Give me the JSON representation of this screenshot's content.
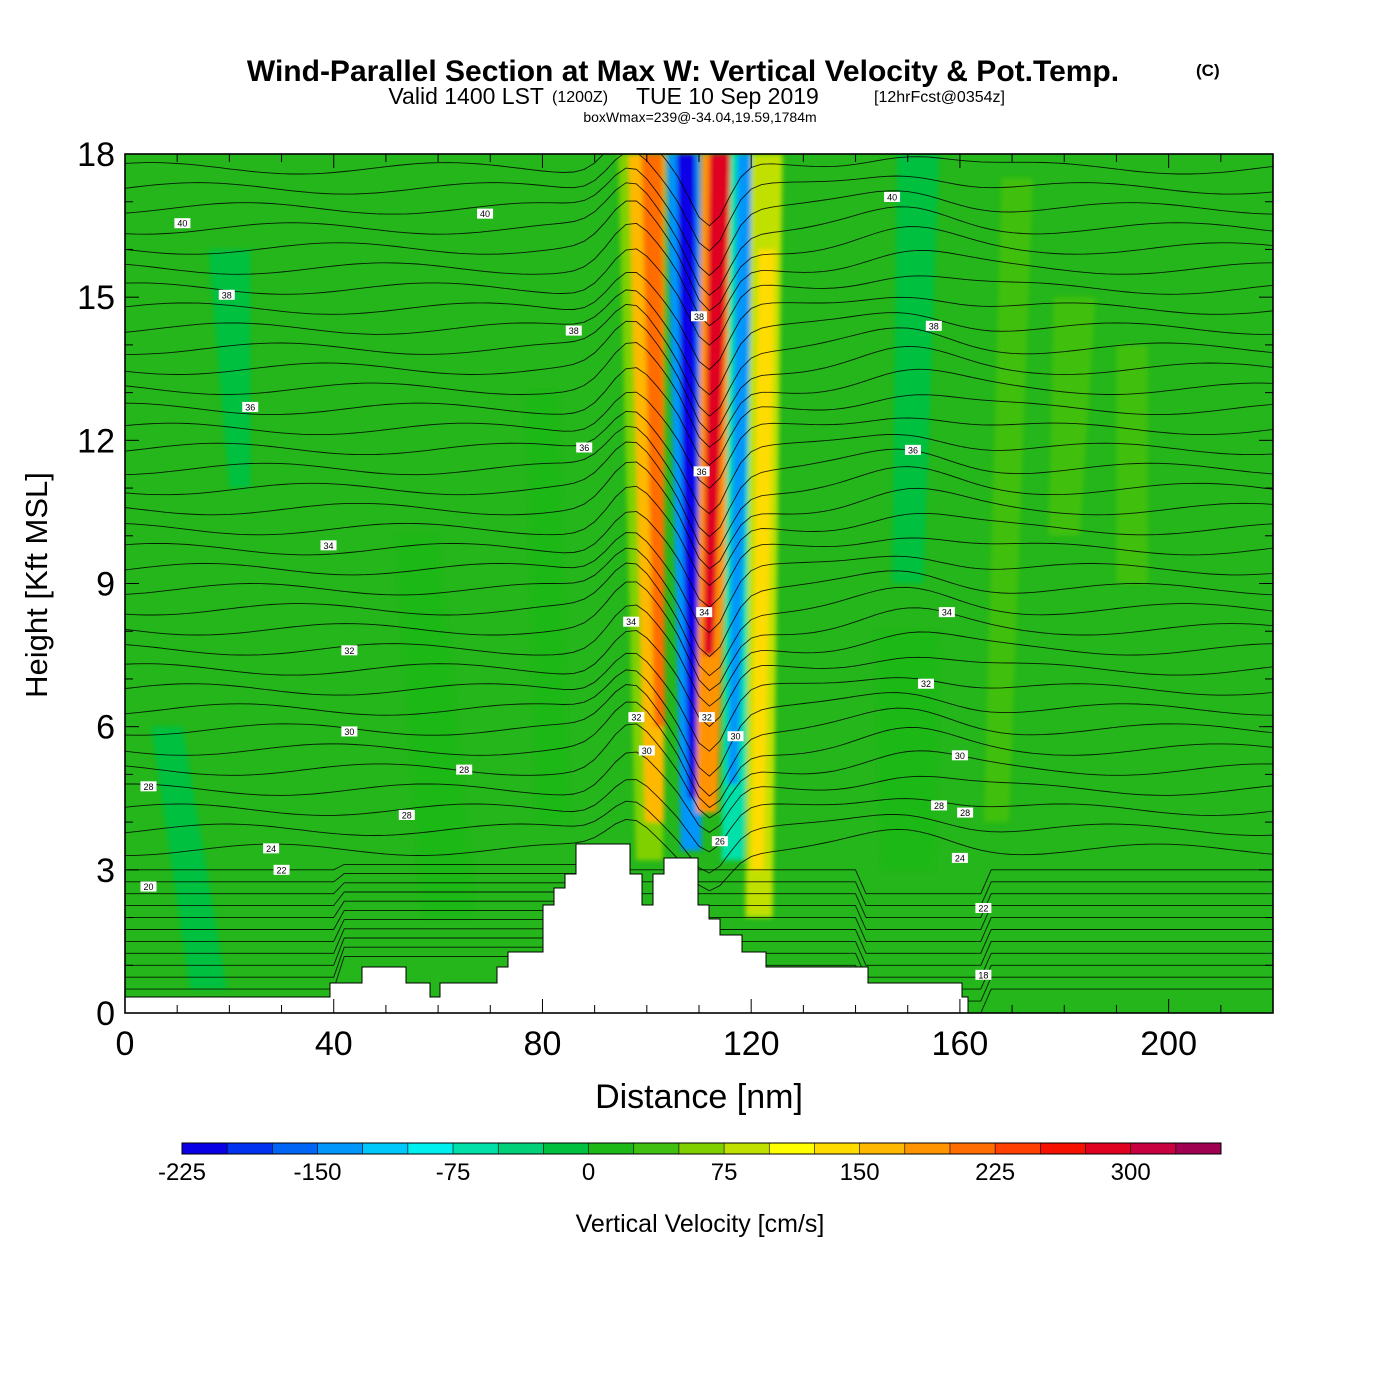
{
  "chart_data": {
    "type": "heatmap",
    "title": "Wind-Parallel Section at Max W: Vertical Velocity & Pot.Temp.",
    "title_mark": "(C)",
    "subtitle": {
      "valid": "Valid 1400 LST",
      "utc": "(1200Z)",
      "date": "TUE 10 Sep 2019",
      "forecast": "[12hrFcst@0354z]"
    },
    "info_line": "boxWmax=239@-34.04,19.59,1784m",
    "xlabel": "Distance [nm]",
    "ylabel": "Height [Kft MSL]",
    "xlim": [
      0,
      220
    ],
    "ylim": [
      0,
      18
    ],
    "x_ticks": [
      0,
      40,
      80,
      120,
      160,
      200
    ],
    "x_tick_labels": [
      "0",
      "40",
      "80",
      "120",
      "160",
      "200"
    ],
    "y_ticks": [
      0,
      3,
      6,
      9,
      12,
      15,
      18
    ],
    "y_tick_labels": [
      "0",
      "3",
      "6",
      "9",
      "12",
      "15",
      "18"
    ],
    "colorbar": {
      "label": "Vertical Velocity [cm/s]",
      "min": -225,
      "max": 350,
      "step": 25,
      "tick_values": [
        -225,
        -150,
        -75,
        0,
        75,
        150,
        225,
        300
      ],
      "tick_labels": [
        "-225",
        "-150",
        "-75",
        "0",
        "75",
        "150",
        "225",
        "300"
      ],
      "colors": [
        "#0a00e6",
        "#0032f0",
        "#0064f5",
        "#0096fa",
        "#00c8fa",
        "#00f0f0",
        "#00e0a8",
        "#00d078",
        "#00c040",
        "#1cb818",
        "#40c010",
        "#80d000",
        "#c0e000",
        "#ffff00",
        "#ffdc00",
        "#ffb800",
        "#ff9400",
        "#ff6c00",
        "#ff4000",
        "#f51000",
        "#e00020",
        "#c80040",
        "#a00050"
      ]
    },
    "contour_labels": [
      {
        "text": "40",
        "x": 11,
        "y": 16.55
      },
      {
        "text": "40",
        "x": 69,
        "y": 16.75
      },
      {
        "text": "40",
        "x": 147,
        "y": 17.1
      },
      {
        "text": "38",
        "x": 19.5,
        "y": 15.05
      },
      {
        "text": "38",
        "x": 86,
        "y": 14.3
      },
      {
        "text": "38",
        "x": 110,
        "y": 14.6
      },
      {
        "text": "38",
        "x": 155,
        "y": 14.4
      },
      {
        "text": "36",
        "x": 24,
        "y": 12.7
      },
      {
        "text": "36",
        "x": 88,
        "y": 11.85
      },
      {
        "text": "36",
        "x": 110.5,
        "y": 11.35
      },
      {
        "text": "36",
        "x": 151,
        "y": 11.8
      },
      {
        "text": "34",
        "x": 39,
        "y": 9.8
      },
      {
        "text": "34",
        "x": 97,
        "y": 8.2
      },
      {
        "text": "34",
        "x": 111,
        "y": 8.4
      },
      {
        "text": "34",
        "x": 157.5,
        "y": 8.4
      },
      {
        "text": "32",
        "x": 43,
        "y": 7.6
      },
      {
        "text": "32",
        "x": 98,
        "y": 6.2
      },
      {
        "text": "32",
        "x": 111.5,
        "y": 6.2
      },
      {
        "text": "32",
        "x": 153.5,
        "y": 6.9
      },
      {
        "text": "30",
        "x": 43,
        "y": 5.9
      },
      {
        "text": "30",
        "x": 100,
        "y": 5.5
      },
      {
        "text": "30",
        "x": 117,
        "y": 5.8
      },
      {
        "text": "30",
        "x": 160,
        "y": 5.4
      },
      {
        "text": "28",
        "x": 4.5,
        "y": 4.75
      },
      {
        "text": "28",
        "x": 65,
        "y": 5.1
      },
      {
        "text": "28",
        "x": 54,
        "y": 4.15
      },
      {
        "text": "28",
        "x": 156,
        "y": 4.35
      },
      {
        "text": "28",
        "x": 161,
        "y": 4.2
      },
      {
        "text": "26",
        "x": 114,
        "y": 3.6
      },
      {
        "text": "24",
        "x": 28,
        "y": 3.45
      },
      {
        "text": "24",
        "x": 160,
        "y": 3.25
      },
      {
        "text": "22",
        "x": 30,
        "y": 3.0
      },
      {
        "text": "22",
        "x": 164.5,
        "y": 2.2
      },
      {
        "text": "20",
        "x": 4.5,
        "y": 2.65
      },
      {
        "text": "18",
        "x": 164.5,
        "y": 0.8
      }
    ]
  }
}
